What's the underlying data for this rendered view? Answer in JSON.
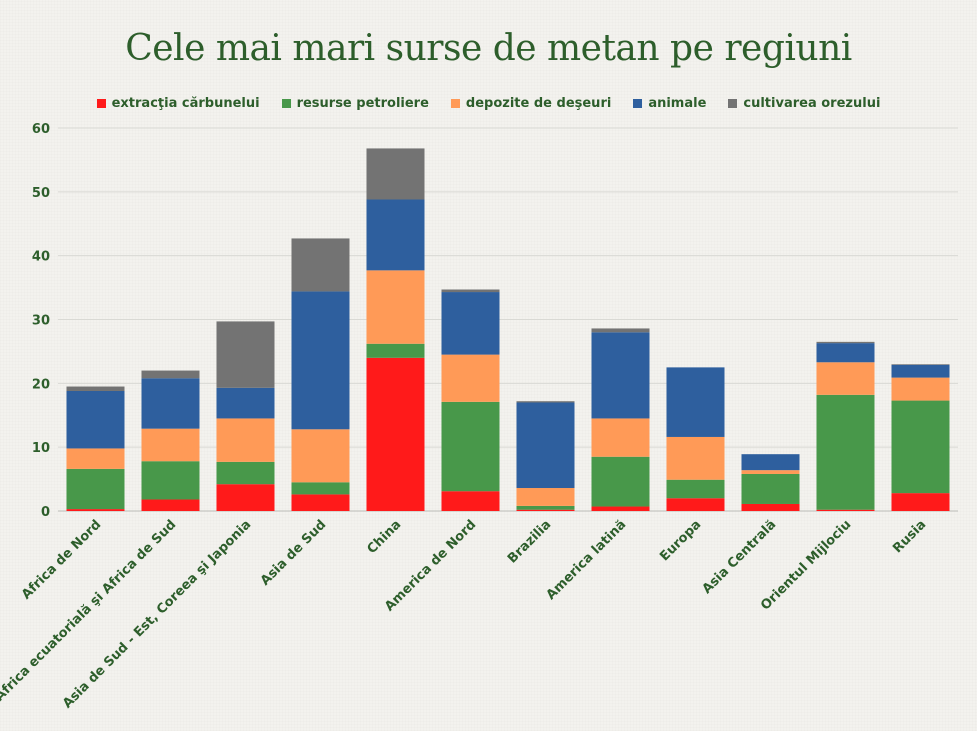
{
  "chart_data": {
    "type": "bar",
    "stacked": true,
    "title": "Cele mai mari surse de metan pe regiuni",
    "xlabel": "",
    "ylabel": "",
    "ylim": [
      0,
      60
    ],
    "yticks": [
      "0",
      "10",
      "20",
      "30",
      "40",
      "50",
      "60"
    ],
    "grid": true,
    "legend_position": "top",
    "categories": [
      "Africa de Nord",
      "Africa ecuatorială şi Africa de Sud",
      "Asia de Sud - Est, Coreea şi Japonia",
      "Asia de Sud",
      "China",
      "America de Nord",
      "Brazilia",
      "America latină",
      "Europa",
      "Asia Centrală",
      "Orientul Mijlociu",
      "Rusia"
    ],
    "series": [
      {
        "name": "extracţia cărbunelui",
        "color": "#ff1a1a",
        "values": [
          0.3,
          1.8,
          4.2,
          2.6,
          24,
          3.1,
          0.2,
          0.7,
          2.0,
          1.1,
          0.2,
          2.8
        ]
      },
      {
        "name": "resurse petroliere",
        "color": "#48984a",
        "values": [
          6.3,
          6.0,
          3.5,
          1.9,
          2.2,
          14.0,
          0.6,
          7.8,
          2.9,
          4.7,
          18.0,
          14.5
        ]
      },
      {
        "name": "depozite de deşeuri",
        "color": "#ff9a57",
        "values": [
          3.2,
          5.1,
          6.8,
          8.3,
          11.5,
          7.4,
          2.8,
          6.0,
          6.7,
          0.6,
          5.1,
          3.6
        ]
      },
      {
        "name": "animale",
        "color": "#2e5f9e",
        "values": [
          9.0,
          7.9,
          4.8,
          21.6,
          11.1,
          9.8,
          13.4,
          13.5,
          10.9,
          2.5,
          3.0,
          2.0
        ]
      },
      {
        "name": "cultivarea orezului",
        "color": "#737373",
        "values": [
          0.7,
          1.2,
          10.4,
          8.3,
          8.0,
          0.4,
          0.2,
          0.6,
          0.0,
          0.0,
          0.2,
          0.1
        ]
      }
    ],
    "colors": {
      "text": "#2d5e2b",
      "grid": "#d9d9d4",
      "background": "#f3f2ee"
    }
  }
}
